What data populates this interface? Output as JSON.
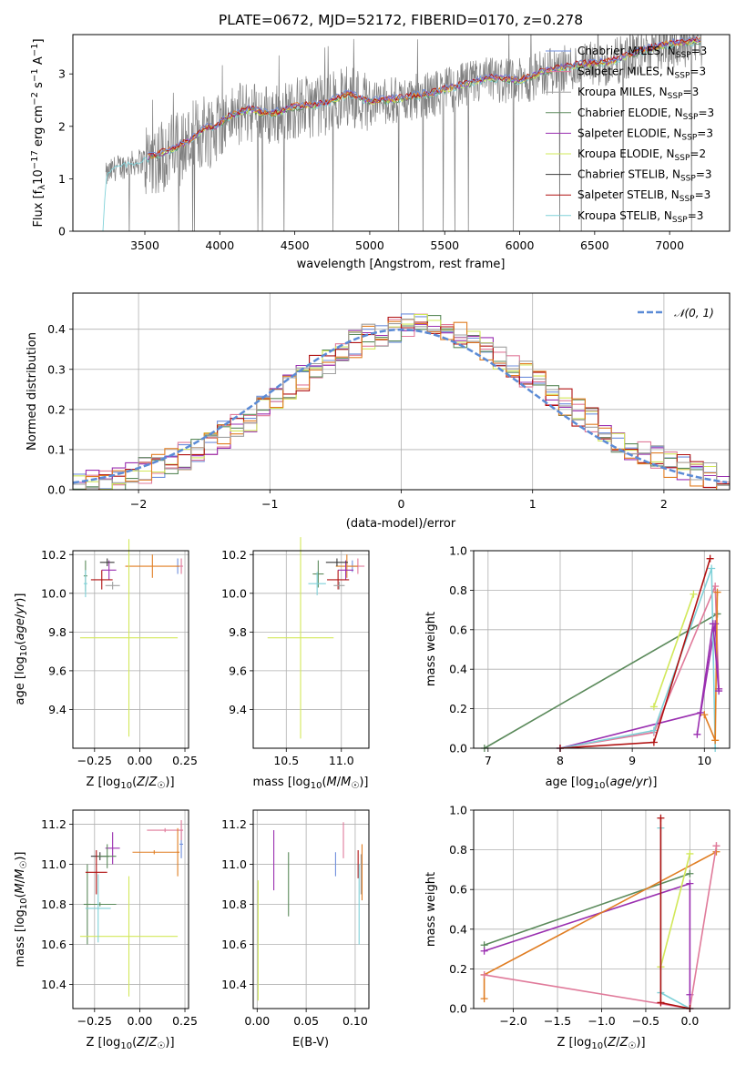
{
  "title": "PLATE=0672, MJD=52172, FIBERID=0170, z=0.278",
  "colors": {
    "Chabrier MILES": "#6f8fdc",
    "Salpeter MILES": "#e07a9a",
    "Kroupa MILES": "#a0a0a0",
    "Chabrier ELODIE": "#5b8a5b",
    "Salpeter ELODIE": "#9a2fb0",
    "Kroupa ELODIE": "#d2e85a",
    "Chabrier STELIB": "#3a3a3a",
    "Salpeter STELIB": "#b01010",
    "Kroupa STELIB": "#7fd1d8",
    "extra_orange": "#e07d22",
    "extra_darkgreen": "#5e8a5e",
    "spectrum_data": "#808080",
    "normal_curve": "#5b8bd6"
  },
  "chart_data": [
    {
      "id": "spectrum",
      "type": "line",
      "xlabel": "wavelength [Angstrom, rest frame]",
      "ylabel": "Flux [f_λ10^-17 erg cm^-2 s^-1 A^-1]",
      "ylabel_parts": [
        "Flux [f",
        "λ",
        "10",
        "−17",
        " erg cm",
        "−2",
        " s",
        "−1",
        " A",
        "−1",
        "]"
      ],
      "xlim": [
        3020,
        7400
      ],
      "ylim": [
        0,
        3.75
      ],
      "xticks": [
        "3500",
        "4000",
        "4500",
        "5000",
        "5500",
        "6000",
        "6500",
        "7000"
      ],
      "yticks": [
        "0",
        "1",
        "2",
        "3"
      ],
      "grid": false,
      "legend_position": "top-right",
      "legend": [
        {
          "name": "Chabrier MILES",
          "nssp": "3"
        },
        {
          "name": "Salpeter MILES",
          "nssp": "3"
        },
        {
          "name": "Kroupa MILES",
          "nssp": "3"
        },
        {
          "name": "Chabrier ELODIE",
          "nssp": "3"
        },
        {
          "name": "Salpeter ELODIE",
          "nssp": "3"
        },
        {
          "name": "Kroupa ELODIE",
          "nssp": "2"
        },
        {
          "name": "Chabrier STELIB",
          "nssp": "3"
        },
        {
          "name": "Salpeter STELIB",
          "nssp": "3"
        },
        {
          "name": "Kroupa STELIB",
          "nssp": "3"
        }
      ],
      "nssp_label": "N",
      "nssp_sub": "SSP",
      "model_continuum": {
        "x": [
          3220,
          3240,
          3300,
          3400,
          3500,
          3600,
          3700,
          3800,
          3900,
          3970,
          4050,
          4200,
          4340,
          4500,
          4700,
          4860,
          5000,
          5200,
          5400,
          5600,
          5800,
          6000,
          6200,
          6400,
          6600,
          6800,
          7000,
          7200
        ],
        "y": [
          0.0,
          1.05,
          1.2,
          1.28,
          1.36,
          1.45,
          1.55,
          1.7,
          1.95,
          1.95,
          2.15,
          2.3,
          2.2,
          2.35,
          2.4,
          2.6,
          2.45,
          2.5,
          2.6,
          2.75,
          2.9,
          2.85,
          3.05,
          3.15,
          3.2,
          3.4,
          3.55,
          3.6
        ]
      }
    },
    {
      "id": "residuals",
      "type": "histogram",
      "xlabel": "(data-model)/error",
      "ylabel": "Normed distribution",
      "xlim": [
        -2.5,
        2.5
      ],
      "ylim": [
        0,
        0.49
      ],
      "xticks": [
        "−2",
        "−1",
        "0",
        "1",
        "2"
      ],
      "yticks": [
        "0.0",
        "0.1",
        "0.2",
        "0.3",
        "0.4"
      ],
      "grid": true,
      "legend_position": "top-right",
      "legend": [
        "𝒩(0, 1)"
      ],
      "bin_width": 0.1,
      "bin_start": -2.5,
      "reference_curve": "normal pdf, mean 0, sigma 1"
    },
    {
      "id": "age_vs_Z",
      "type": "errorbar",
      "xlabel": "Z [log10(Z/Z☉)]",
      "ylabel": "age  [log10(age/yr)]",
      "xlim": [
        -0.37,
        0.27
      ],
      "ylim": [
        9.2,
        10.22
      ],
      "xticks": [
        -0.25,
        0.0,
        0.25
      ],
      "xtick_labels": [
        "−0.25",
        "0.00",
        "0.25"
      ],
      "yticks": [
        9.4,
        9.6,
        9.8,
        10.0,
        10.2
      ],
      "ytick_labels": [
        "9.4",
        "9.6",
        "9.8",
        "10.0",
        "10.2"
      ],
      "grid": true,
      "points": [
        {
          "series": "Chabrier MILES",
          "x": 0.21,
          "xerr": 0.01,
          "y": 10.14,
          "yerr": 0.04
        },
        {
          "series": "Salpeter MILES",
          "x": 0.23,
          "xerr": 0.01,
          "y": 10.14,
          "yerr": 0.04
        },
        {
          "series": "extra_orange",
          "x": 0.07,
          "xerr": 0.15,
          "y": 10.14,
          "yerr": 0.06
        },
        {
          "series": "Chabrier ELODIE",
          "x": -0.3,
          "xerr": 0.01,
          "y": 10.09,
          "yerr": 0.08
        },
        {
          "series": "Salpeter ELODIE",
          "x": -0.17,
          "xerr": 0.04,
          "y": 10.12,
          "yerr": 0.05
        },
        {
          "series": "Kroupa ELODIE",
          "x": -0.06,
          "xerr": 0.27,
          "y": 9.77,
          "yerr": 0.51
        },
        {
          "series": "Chabrier STELIB",
          "x": -0.18,
          "xerr": 0.04,
          "y": 10.16,
          "yerr": 0.02
        },
        {
          "series": "Salpeter STELIB",
          "x": -0.21,
          "xerr": 0.06,
          "y": 10.07,
          "yerr": 0.05
        },
        {
          "series": "Kroupa STELIB",
          "x": -0.3,
          "xerr": 0.01,
          "y": 10.05,
          "yerr": 0.07
        },
        {
          "series": "Kroupa MILES",
          "x": -0.15,
          "xerr": 0.04,
          "y": 10.04,
          "yerr": 0.02
        }
      ]
    },
    {
      "id": "age_vs_mass",
      "type": "errorbar",
      "xlabel": "mass [log10(M/M☉)]",
      "ylabel": "",
      "xlim": [
        10.2,
        11.25
      ],
      "ylim": [
        9.2,
        10.22
      ],
      "xticks": [
        10.5,
        11.0
      ],
      "xtick_labels": [
        "10.5",
        "11.0"
      ],
      "yticks": [
        9.4,
        9.6,
        9.8,
        10.0,
        10.2
      ],
      "ytick_labels": [
        "9.4",
        "9.6",
        "9.8",
        "10.0",
        "10.2"
      ],
      "grid": true,
      "points": [
        {
          "series": "Chabrier MILES",
          "x": 11.1,
          "xerr": 0.05,
          "y": 10.14,
          "yerr": 0.03
        },
        {
          "series": "Salpeter MILES",
          "x": 11.15,
          "xerr": 0.06,
          "y": 10.14,
          "yerr": 0.04
        },
        {
          "series": "extra_orange",
          "x": 11.05,
          "xerr": 0.1,
          "y": 10.14,
          "yerr": 0.06
        },
        {
          "series": "Chabrier ELODIE",
          "x": 10.79,
          "xerr": 0.05,
          "y": 10.1,
          "yerr": 0.07
        },
        {
          "series": "Salpeter ELODIE",
          "x": 11.04,
          "xerr": 0.07,
          "y": 10.12,
          "yerr": 0.05
        },
        {
          "series": "Kroupa ELODIE",
          "x": 10.63,
          "xerr": 0.3,
          "y": 9.77,
          "yerr": 0.52
        },
        {
          "series": "Chabrier STELIB",
          "x": 10.96,
          "xerr": 0.1,
          "y": 10.16,
          "yerr": 0.02
        },
        {
          "series": "Salpeter STELIB",
          "x": 10.97,
          "xerr": 0.1,
          "y": 10.07,
          "yerr": 0.05
        },
        {
          "series": "Kroupa STELIB",
          "x": 10.78,
          "xerr": 0.08,
          "y": 10.05,
          "yerr": 0.06
        },
        {
          "series": "Kroupa MILES",
          "x": 10.98,
          "xerr": 0.05,
          "y": 10.04,
          "yerr": 0.02
        }
      ]
    },
    {
      "id": "weight_vs_age",
      "type": "line",
      "xlabel": "age  [log10(age/yr)]",
      "ylabel": "mass weight",
      "xlim": [
        6.8,
        10.35
      ],
      "ylim": [
        0,
        1.0
      ],
      "xticks": [
        7,
        8,
        9,
        10
      ],
      "xtick_labels": [
        "7",
        "8",
        "9",
        "10"
      ],
      "yticks": [
        0,
        0.2,
        0.4,
        0.6,
        0.8,
        1.0
      ],
      "ytick_labels": [
        "0.0",
        "0.2",
        "0.4",
        "0.6",
        "0.8",
        "1.0"
      ],
      "grid": true,
      "series": [
        {
          "series": "Chabrier ELODIE",
          "x": [
            6.95,
            10.18
          ],
          "y": [
            0.0,
            0.68
          ]
        },
        {
          "series": "Kroupa ELODIE",
          "x": [
            9.3,
            9.85
          ],
          "y": [
            0.21,
            0.78
          ]
        },
        {
          "series": "Salpeter MILES",
          "x": [
            8.0,
            9.3,
            10.15,
            10.2
          ],
          "y": [
            0.0,
            0.08,
            0.82,
            0.3
          ]
        },
        {
          "series": "Salpeter ELODIE",
          "x": [
            8.0,
            9.95,
            10.15,
            10.2
          ],
          "y": [
            0.0,
            0.18,
            0.63,
            0.3
          ]
        },
        {
          "series": "Kroupa STELIB",
          "x": [
            8.0,
            9.3,
            10.1,
            10.15
          ],
          "y": [
            0.0,
            0.09,
            0.91,
            0.0
          ]
        },
        {
          "series": "Salpeter STELIB",
          "x": [
            8.0,
            9.3,
            10.08
          ],
          "y": [
            0.0,
            0.03,
            0.96
          ]
        },
        {
          "series": "extra_orange",
          "x": [
            10.0,
            10.15,
            10.18
          ],
          "y": [
            0.17,
            0.04,
            0.79
          ]
        },
        {
          "series": "Salpeter ELODIE",
          "x": [
            9.9,
            10.12,
            10.2
          ],
          "y": [
            0.07,
            0.63,
            0.29
          ]
        }
      ]
    },
    {
      "id": "mass_vs_Z",
      "type": "errorbar",
      "xlabel": "Z [log10(Z/Z☉)]",
      "ylabel": "mass [log10(M/M☉)]",
      "xlim": [
        -0.37,
        0.27
      ],
      "ylim": [
        10.28,
        11.27
      ],
      "xticks": [
        -0.25,
        0.0,
        0.25
      ],
      "xtick_labels": [
        "−0.25",
        "0.00",
        "0.25"
      ],
      "yticks": [
        10.4,
        10.6,
        10.8,
        11.0,
        11.2
      ],
      "ytick_labels": [
        "10.4",
        "10.6",
        "10.8",
        "11.0",
        "11.2"
      ],
      "grid": true,
      "points": [
        {
          "series": "Chabrier MILES",
          "x": 0.23,
          "xerr": 0.01,
          "y": 11.1,
          "yerr": 0.07
        },
        {
          "series": "Salpeter MILES",
          "x": 0.23,
          "xerr": 0.01,
          "y": 11.17,
          "yerr": 0.05
        },
        {
          "series": "Salpeter MILES",
          "x": 0.14,
          "xerr": 0.1,
          "y": 11.17,
          "yerr": 0.01
        },
        {
          "series": "extra_orange",
          "x": 0.21,
          "xerr": 0.01,
          "y": 11.06,
          "yerr": 0.12
        },
        {
          "series": "extra_orange",
          "x": 0.08,
          "xerr": 0.12,
          "y": 11.06,
          "yerr": 0.01
        },
        {
          "series": "Chabrier ELODIE",
          "x": -0.29,
          "xerr": 0.02,
          "y": 10.8,
          "yerr": 0.2
        },
        {
          "series": "Chabrier ELODIE",
          "x": -0.22,
          "xerr": 0.09,
          "y": 10.8,
          "yerr": 0.01
        },
        {
          "series": "Salpeter ELODIE",
          "x": -0.15,
          "xerr": 0.04,
          "y": 11.08,
          "yerr": 0.08
        },
        {
          "series": "Kroupa ELODIE",
          "x": -0.06,
          "xerr": 0.27,
          "y": 10.64,
          "yerr": 0.3
        },
        {
          "series": "Chabrier STELIB",
          "x": -0.22,
          "xerr": 0.05,
          "y": 11.04,
          "yerr": 0.02
        },
        {
          "series": "Chabrier ELODIE",
          "x": -0.18,
          "xerr": 0.05,
          "y": 11.04,
          "yerr": 0.06
        },
        {
          "series": "Salpeter STELIB",
          "x": -0.24,
          "xerr": 0.06,
          "y": 10.96,
          "yerr": 0.11
        },
        {
          "series": "Kroupa STELIB",
          "x": -0.23,
          "xerr": 0.07,
          "y": 10.78,
          "yerr": 0.17
        }
      ]
    },
    {
      "id": "mass_vs_ebv",
      "type": "errorbar",
      "xlabel": "E(B-V)",
      "ylabel": "",
      "xlim": [
        -0.004,
        0.114
      ],
      "ylim": [
        10.28,
        11.27
      ],
      "xticks": [
        0.0,
        0.05,
        0.1
      ],
      "xtick_labels": [
        "0.00",
        "0.05",
        "0.10"
      ],
      "yticks": [
        10.4,
        10.6,
        10.8,
        11.0,
        11.2
      ],
      "ytick_labels": [
        "10.4",
        "10.6",
        "10.8",
        "11.0",
        "11.2"
      ],
      "grid": true,
      "points": [
        {
          "series": "Chabrier MILES",
          "x": 0.08,
          "y": 11.0,
          "yerr": 0.06
        },
        {
          "series": "Salpeter MILES",
          "x": 0.088,
          "y": 11.12,
          "yerr": 0.09
        },
        {
          "series": "extra_orange",
          "x": 0.107,
          "y": 10.96,
          "yerr": 0.14
        },
        {
          "series": "Chabrier ELODIE",
          "x": 0.032,
          "y": 10.9,
          "yerr": 0.16
        },
        {
          "series": "Salpeter ELODIE",
          "x": 0.017,
          "y": 11.02,
          "yerr": 0.15
        },
        {
          "series": "Kroupa ELODIE",
          "x": 0.001,
          "y": 10.62,
          "yerr": 0.3
        },
        {
          "series": "Salpeter STELIB",
          "x": 0.103,
          "y": 11.0,
          "yerr": 0.07
        },
        {
          "series": "Kroupa STELIB",
          "x": 0.104,
          "y": 10.8,
          "yerr": 0.2
        },
        {
          "series": "Kroupa MILES",
          "x": 0.106,
          "y": 10.95,
          "yerr": 0.1
        }
      ]
    },
    {
      "id": "weight_vs_Z",
      "type": "line",
      "xlabel": "Z [log10(Z/Z☉)]",
      "ylabel": "mass weight",
      "xlim": [
        -2.45,
        0.45
      ],
      "ylim": [
        0,
        1.0
      ],
      "xticks": [
        -2.0,
        -1.5,
        -1.0,
        -0.5,
        0.0
      ],
      "xtick_labels": [
        "−2.0",
        "−1.5",
        "−1.0",
        "−0.5",
        "0.0"
      ],
      "yticks": [
        0,
        0.2,
        0.4,
        0.6,
        0.8,
        1.0
      ],
      "ytick_labels": [
        "0.0",
        "0.2",
        "0.4",
        "0.6",
        "0.8",
        "1.0"
      ],
      "grid": true,
      "series": [
        {
          "series": "Chabrier ELODIE",
          "x": [
            -2.33,
            0.0
          ],
          "y": [
            0.32,
            0.68
          ]
        },
        {
          "series": "Salpeter ELODIE",
          "x": [
            -2.33,
            0.0,
            0.0,
            0.0
          ],
          "y": [
            0.29,
            0.63,
            0.07,
            0.0
          ]
        },
        {
          "series": "extra_orange",
          "x": [
            -2.33,
            -2.33,
            0.3
          ],
          "y": [
            0.05,
            0.17,
            0.79
          ]
        },
        {
          "series": "Salpeter MILES",
          "x": [
            -2.33,
            0.0,
            0.3,
            0.3
          ],
          "y": [
            0.17,
            0.0,
            0.82,
            0.82
          ]
        },
        {
          "series": "Kroupa ELODIE",
          "x": [
            -0.33,
            -0.33,
            0.0
          ],
          "y": [
            0.21,
            0.21,
            0.78
          ]
        },
        {
          "series": "Kroupa STELIB",
          "x": [
            -0.33,
            -0.33,
            0.0
          ],
          "y": [
            0.91,
            0.08,
            0.0
          ]
        },
        {
          "series": "Salpeter STELIB",
          "x": [
            -0.33,
            -0.33,
            0.0
          ],
          "y": [
            0.96,
            0.03,
            0.0
          ]
        }
      ]
    }
  ]
}
